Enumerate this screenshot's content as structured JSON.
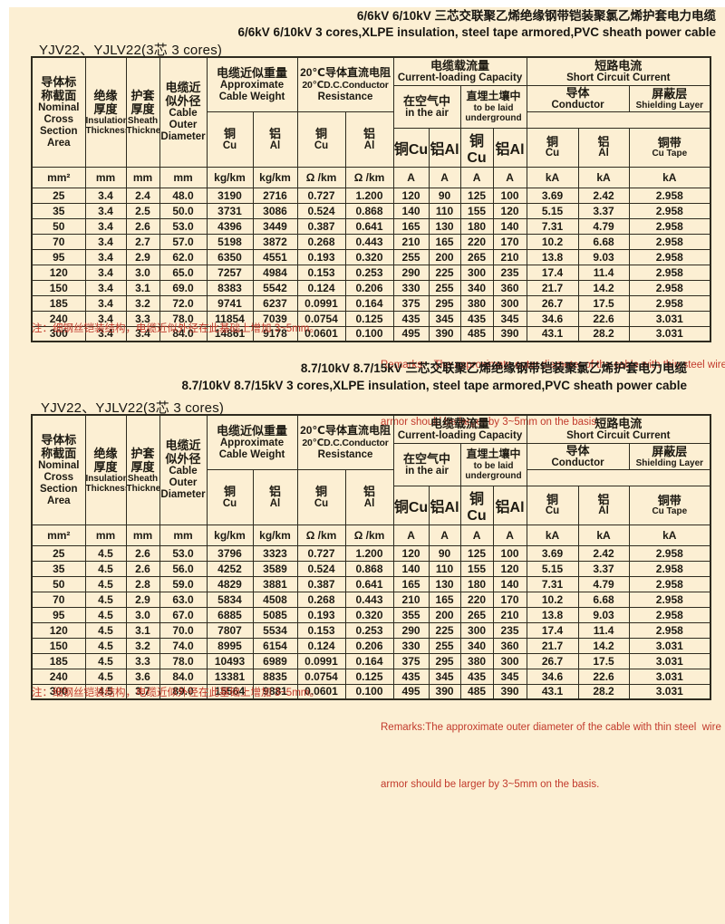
{
  "page": {
    "background": "#FCEFD3",
    "border_color": "#2E2B1F",
    "text_color": "#1D1A12",
    "remark_color": "#C23A2C"
  },
  "header": {
    "nominal": {
      "zh1": "导体标",
      "zh2": "称截面",
      "en1": "Nominal",
      "en2": "Cross",
      "en3": "Section",
      "en4": "Area"
    },
    "insulation": {
      "zh1": "绝缘",
      "zh2": "厚度",
      "en1": "Insulation",
      "en2": "Thickness"
    },
    "sheath": {
      "zh1": "护套",
      "zh2": "厚度",
      "en1": "Sheath",
      "en2": "Thickness"
    },
    "diameter": {
      "zh1": "电缆近",
      "zh2": "似外径",
      "en1": "Cable",
      "en2": "Outer",
      "en3": "Diameter"
    },
    "weight": {
      "zh": "电缆近似重量",
      "en1": "Approximate",
      "en2": "Cable Weight"
    },
    "resistance": {
      "zh": "20℃导体直流电阻",
      "en1": "20℃D.C.Conductor",
      "en2": "Resistance"
    },
    "capacity": {
      "zh": "电缆载流量",
      "en": "Current-loading Capacity"
    },
    "short_circuit": {
      "zh": "短路电流",
      "en": "Short  Circuit Current"
    },
    "air": {
      "zh": "在空气中",
      "en": "in the air"
    },
    "underground": {
      "zh": "直埋土壤中",
      "en1": "to be laid",
      "en2": "underground"
    },
    "conductor": {
      "zh": "导体",
      "en": "Conductor"
    },
    "shielding": {
      "zh": "屏蔽层",
      "en": "Shielding Layer"
    },
    "cu": {
      "zh": "铜",
      "en": "Cu"
    },
    "al": {
      "zh": "铝",
      "en": "Al"
    },
    "cu_inline": "铜Cu",
    "al_inline": "铝Al",
    "cu_tape": {
      "zh": "铜带",
      "en": "Cu Tape"
    },
    "units": [
      "mm²",
      "mm",
      "mm",
      "mm",
      "kg/km",
      "kg/km",
      "Ω /km",
      "Ω /km",
      "A",
      "A",
      "A",
      "A",
      "kA",
      "kA",
      "kA"
    ]
  },
  "table1": {
    "title_zh": "6/6kV 6/10kV 三芯交联聚乙烯绝缘钢带铠装聚氯乙烯护套电力电缆",
    "title_en": "6/6kV 6/10kV 3 cores,XLPE insulation, steel tape armored,PVC sheath power cable",
    "model": "YJV22、YJLV22(3芯  3 cores)",
    "remark_zh": "注：细钢丝铠装结构，电缆近似外径在此基础上增加 3~5mm。",
    "remark_en1": "Remarks:   The approximate outer diameter of the cable with thin steel wire",
    "remark_en2": "armor should be larger by 3~5mm on the basis.",
    "rows": [
      [
        "25",
        "3.4",
        "2.4",
        "48.0",
        "3190",
        "2716",
        "0.727",
        "1.200",
        "120",
        "90",
        "125",
        "100",
        "3.69",
        "2.42",
        "2.958"
      ],
      [
        "35",
        "3.4",
        "2.5",
        "50.0",
        "3731",
        "3086",
        "0.524",
        "0.868",
        "140",
        "110",
        "155",
        "120",
        "5.15",
        "3.37",
        "2.958"
      ],
      [
        "50",
        "3.4",
        "2.6",
        "53.0",
        "4396",
        "3449",
        "0.387",
        "0.641",
        "165",
        "130",
        "180",
        "140",
        "7.31",
        "4.79",
        "2.958"
      ],
      [
        "70",
        "3.4",
        "2.7",
        "57.0",
        "5198",
        "3872",
        "0.268",
        "0.443",
        "210",
        "165",
        "220",
        "170",
        "10.2",
        "6.68",
        "2.958"
      ],
      [
        "95",
        "3.4",
        "2.9",
        "62.0",
        "6350",
        "4551",
        "0.193",
        "0.320",
        "255",
        "200",
        "265",
        "210",
        "13.8",
        "9.03",
        "2.958"
      ],
      [
        "120",
        "3.4",
        "3.0",
        "65.0",
        "7257",
        "4984",
        "0.153",
        "0.253",
        "290",
        "225",
        "300",
        "235",
        "17.4",
        "11.4",
        "2.958"
      ],
      [
        "150",
        "3.4",
        "3.1",
        "69.0",
        "8383",
        "5542",
        "0.124",
        "0.206",
        "330",
        "255",
        "340",
        "360",
        "21.7",
        "14.2",
        "2.958"
      ],
      [
        "185",
        "3.4",
        "3.2",
        "72.0",
        "9741",
        "6237",
        "0.0991",
        "0.164",
        "375",
        "295",
        "380",
        "300",
        "26.7",
        "17.5",
        "2.958"
      ],
      [
        "240",
        "3.4",
        "3.3",
        "78.0",
        "11854",
        "7039",
        "0.0754",
        "0.125",
        "435",
        "345",
        "435",
        "345",
        "34.6",
        "22.6",
        "3.031"
      ],
      [
        "300",
        "3.4",
        "3.4",
        "84.0",
        "14861",
        "9178",
        "0.0601",
        "0.100",
        "495",
        "390",
        "485",
        "390",
        "43.1",
        "28.2",
        "3.031"
      ]
    ]
  },
  "table2": {
    "title_zh": "8.7/10kV 8.7/15kV 三芯交联聚乙烯绝缘钢带铠装聚氯乙烯护套电力电缆",
    "title_en": "8.7/10kV 8.7/15kV 3 cores,XLPE insulation, steel tape armored,PVC sheath power cable",
    "model": "YJV22、YJLV22(3芯  3 cores)",
    "remark_zh": "注：细钢丝铠装结构，电缆近似外径在此基础上增加 3~5mm。",
    "remark_en1": "Remarks:The approximate outer diameter of the cable with thin steel  wire",
    "remark_en2": "armor should be larger by 3~5mm on the basis.",
    "rows": [
      [
        "25",
        "4.5",
        "2.6",
        "53.0",
        "3796",
        "3323",
        "0.727",
        "1.200",
        "120",
        "90",
        "125",
        "100",
        "3.69",
        "2.42",
        "2.958"
      ],
      [
        "35",
        "4.5",
        "2.6",
        "56.0",
        "4252",
        "3589",
        "0.524",
        "0.868",
        "140",
        "110",
        "155",
        "120",
        "5.15",
        "3.37",
        "2.958"
      ],
      [
        "50",
        "4.5",
        "2.8",
        "59.0",
        "4829",
        "3881",
        "0.387",
        "0.641",
        "165",
        "130",
        "180",
        "140",
        "7.31",
        "4.79",
        "2.958"
      ],
      [
        "70",
        "4.5",
        "2.9",
        "63.0",
        "5834",
        "4508",
        "0.268",
        "0.443",
        "210",
        "165",
        "220",
        "170",
        "10.2",
        "6.68",
        "2.958"
      ],
      [
        "95",
        "4.5",
        "3.0",
        "67.0",
        "6885",
        "5085",
        "0.193",
        "0.320",
        "355",
        "200",
        "265",
        "210",
        "13.8",
        "9.03",
        "2.958"
      ],
      [
        "120",
        "4.5",
        "3.1",
        "70.0",
        "7807",
        "5534",
        "0.153",
        "0.253",
        "290",
        "225",
        "300",
        "235",
        "17.4",
        "11.4",
        "2.958"
      ],
      [
        "150",
        "4.5",
        "3.2",
        "74.0",
        "8995",
        "6154",
        "0.124",
        "0.206",
        "330",
        "255",
        "340",
        "360",
        "21.7",
        "14.2",
        "3.031"
      ],
      [
        "185",
        "4.5",
        "3.3",
        "78.0",
        "10493",
        "6989",
        "0.0991",
        "0.164",
        "375",
        "295",
        "380",
        "300",
        "26.7",
        "17.5",
        "3.031"
      ],
      [
        "240",
        "4.5",
        "3.6",
        "84.0",
        "13381",
        "8835",
        "0.0754",
        "0.125",
        "435",
        "345",
        "435",
        "345",
        "34.6",
        "22.6",
        "3.031"
      ],
      [
        "300",
        "4.5",
        "3.7",
        "89.0",
        "15564",
        "9881",
        "0.0601",
        "0.100",
        "495",
        "390",
        "485",
        "390",
        "43.1",
        "28.2",
        "3.031"
      ]
    ]
  }
}
